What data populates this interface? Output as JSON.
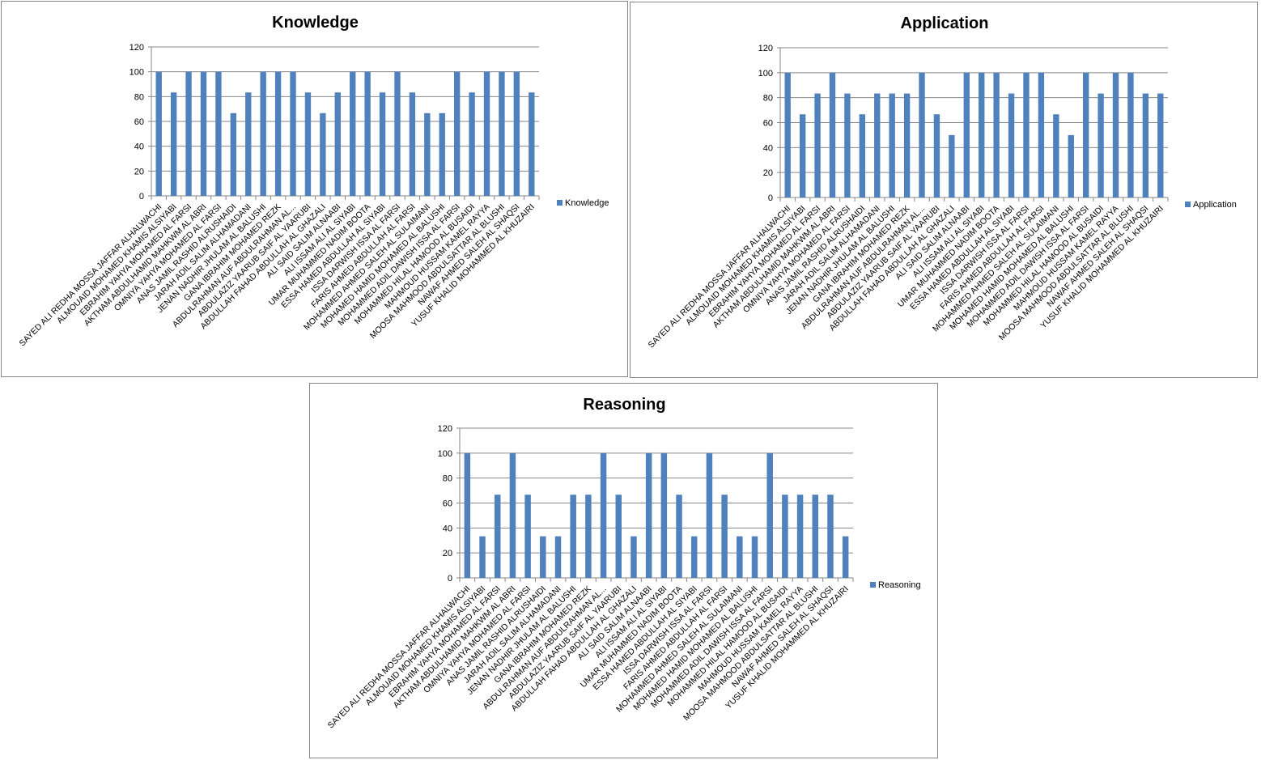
{
  "chart_data": [
    {
      "type": "bar",
      "title": "Knowledge",
      "legend": "Knowledge",
      "legend_position": "right",
      "ylim": [
        0,
        120
      ],
      "yticks": [
        0,
        20,
        40,
        60,
        80,
        100,
        120
      ],
      "grid": true,
      "color": "#4f81bd",
      "values": [
        100,
        83.33,
        100,
        100,
        100,
        66.67,
        83.33,
        100,
        100,
        100,
        83.33,
        66.67,
        83.33,
        100,
        100,
        83.33,
        100,
        83.33,
        66.67,
        66.67,
        100,
        83.33,
        100,
        100,
        100,
        83.33
      ]
    },
    {
      "type": "bar",
      "title": "Application",
      "legend": "Application",
      "legend_position": "right",
      "ylim": [
        0,
        120
      ],
      "yticks": [
        0,
        20,
        40,
        60,
        80,
        100,
        120
      ],
      "grid": true,
      "color": "#4f81bd",
      "values": [
        100,
        66.67,
        83.33,
        100,
        83.33,
        66.67,
        83.33,
        83.33,
        83.33,
        100,
        66.67,
        50,
        100,
        100,
        100,
        83.33,
        100,
        100,
        66.67,
        50,
        100,
        83.33,
        100,
        100,
        83.33,
        83.33
      ]
    },
    {
      "type": "bar",
      "title": "Reasoning",
      "legend": "Reasoning",
      "legend_position": "right",
      "ylim": [
        0,
        120
      ],
      "yticks": [
        0,
        20,
        40,
        60,
        80,
        100,
        120
      ],
      "grid": true,
      "color": "#4f81bd",
      "values": [
        100,
        33.33,
        66.67,
        100,
        66.67,
        33.33,
        33.33,
        66.67,
        66.67,
        100,
        66.67,
        33.33,
        100,
        100,
        66.67,
        33.33,
        100,
        66.67,
        33.33,
        33.33,
        100,
        66.67,
        66.67,
        66.67,
        66.67,
        33.33
      ]
    }
  ],
  "categories": [
    "SAYED ALI REDHA MOSSA JAFFAR ALHALWACHI",
    "ALMOUAID MOHAMED KHAMIS ALSIYABI",
    "EBRAHIM YAHYA MOHAMED AL FARSI",
    "AKTHAM ABDULHAMID MAHKWM AL ABRI",
    "OMNIYA YAHYA MOHAMED AL FARSI",
    "ANAS JAMIL RASHID ALRUSHAIDI",
    "JARAH ADIL SALIM ALHAMADANI",
    "JENAN NADHIR JHULAM AL BALUSHI",
    "GANA IBRAHIM MOHAMED REZK",
    "ABDULRAHMAN AUF ABDULRAHMAN AL...",
    "ABDULAZIZ YAARUB SAIF AL YAARUBI",
    "ABDULLAH FAHAD ABDULLAH AL GHAZALI",
    "ALI SAID SALIM ALNAABI",
    "ALI ISSAM ALI AL SIYABI",
    "UMAR MUHAMMED NADIM BOOTA",
    "ESSA HAMED ABDULLAH AL SIYABI",
    "ISSA DARWISH ISSA AL FARSI",
    "FARIS AHMED ABDULLAH AL FARSI",
    "MOHAMMED AHMED SALEH AL SULAIMANI",
    "MOHAMED HAMID MOHAMED AL BALUSHI",
    "MOHAMMED ADIL DAWISH ISSA AL FARSI",
    "MOHAMMED HILAL HAMOOD AL BUSAIDI",
    "MAHMOUD HUSSAM KAMEL RAYYA",
    "MOOSA MAHMOOD ABDULSATTAR AL BLUSHI",
    "NAWAF AHMED SALEH AL SHAQSI",
    "YUSUF KHALID MOHAMMED AL KHUZAIRI"
  ]
}
